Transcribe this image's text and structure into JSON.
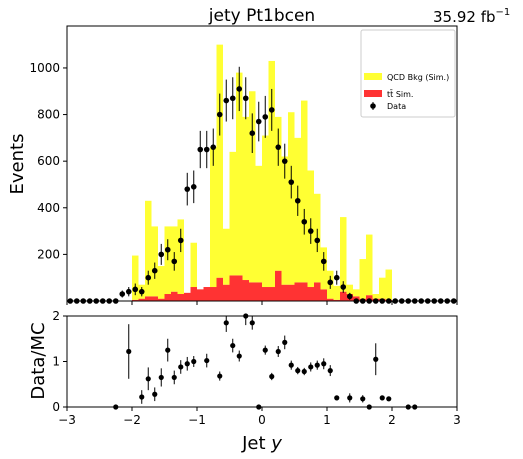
{
  "chart_data": [
    {
      "type": "bar",
      "title": "jety  Pt1bcen",
      "luminosity": "35.92 fb",
      "luminosity_exp": "−1",
      "ylabel": "Events",
      "ylim": [
        0,
        1180
      ],
      "xlim": [
        -3,
        3
      ],
      "xticks": [
        -3,
        -2,
        -1,
        0,
        1,
        2,
        3
      ],
      "yticks": [
        200,
        400,
        600,
        800,
        1000
      ],
      "ytick_labels": [
        "200",
        "400",
        "600",
        "800",
        "1000"
      ],
      "bin_width": 0.1,
      "bin_low_edges": [
        -3.0,
        -2.9,
        -2.8,
        -2.7,
        -2.6,
        -2.5,
        -2.4,
        -2.3,
        -2.2,
        -2.1,
        -2.0,
        -1.9,
        -1.8,
        -1.7,
        -1.6,
        -1.5,
        -1.4,
        -1.3,
        -1.2,
        -1.1,
        -1.0,
        -0.9,
        -0.8,
        -0.7,
        -0.6,
        -0.5,
        -0.4,
        -0.3,
        -0.2,
        -0.1,
        0.0,
        0.1,
        0.2,
        0.3,
        0.4,
        0.5,
        0.6,
        0.7,
        0.8,
        0.9,
        1.0,
        1.1,
        1.2,
        1.3,
        1.4,
        1.5,
        1.6,
        1.7,
        1.8,
        1.9,
        2.0,
        2.1,
        2.2,
        2.3,
        2.4,
        2.5,
        2.6,
        2.7,
        2.8,
        2.9
      ],
      "legend": {
        "placement": "top-right",
        "entries": [
          {
            "label": "QCD Bkg (Sim.)",
            "color": "#ffff33",
            "kind": "box"
          },
          {
            "label": "tt̄ Sim.",
            "color": "#ff3333",
            "kind": "box"
          },
          {
            "label": "Data",
            "color": "#000000",
            "kind": "marker"
          }
        ]
      },
      "series": [
        {
          "name": "QCD Bkg (Sim.)",
          "color": "#ffff33",
          "stacked_on": "tt̄ Sim.",
          "values": [
            0,
            0,
            0,
            0,
            0,
            0,
            0,
            0,
            0,
            0,
            190,
            60,
            410,
            300,
            140,
            290,
            280,
            320,
            0,
            190,
            0,
            0,
            600,
            1000,
            240,
            530,
            870,
            700,
            820,
            500,
            650,
            970,
            660,
            550,
            740,
            620,
            780,
            500,
            380,
            180,
            120,
            60,
            320,
            40,
            30,
            170,
            260,
            20,
            90,
            130,
            0,
            0,
            0,
            0,
            0,
            0,
            0,
            0,
            0,
            0
          ]
        },
        {
          "name": "tt̄ Sim.",
          "color": "#ff3333",
          "values": [
            0,
            0,
            0,
            0,
            0,
            0,
            0,
            0,
            0,
            0,
            5,
            10,
            20,
            20,
            10,
            30,
            40,
            30,
            35,
            60,
            50,
            60,
            60,
            100,
            70,
            110,
            110,
            90,
            80,
            80,
            60,
            60,
            130,
            70,
            70,
            80,
            80,
            60,
            80,
            50,
            10,
            5,
            40,
            30,
            20,
            10,
            25,
            10,
            10,
            5,
            0,
            0,
            0,
            0,
            0,
            0,
            0,
            0,
            0,
            0
          ]
        },
        {
          "name": "Data",
          "color": "#000000",
          "kind": "points",
          "x": [
            -2.95,
            -2.85,
            -2.75,
            -2.65,
            -2.55,
            -2.45,
            -2.35,
            -2.25,
            -2.15,
            -2.05,
            -1.95,
            -1.85,
            -1.75,
            -1.65,
            -1.55,
            -1.45,
            -1.35,
            -1.25,
            -1.15,
            -1.05,
            -0.95,
            -0.85,
            -0.75,
            -0.65,
            -0.55,
            -0.45,
            -0.35,
            -0.25,
            -0.15,
            -0.05,
            0.05,
            0.15,
            0.25,
            0.35,
            0.45,
            0.55,
            0.65,
            0.75,
            0.85,
            0.95,
            1.05,
            1.15,
            1.25,
            1.35,
            1.45,
            1.55,
            1.65,
            1.75,
            1.85,
            1.95,
            2.05,
            2.15,
            2.25,
            2.35,
            2.45,
            2.55,
            2.65,
            2.75,
            2.85,
            2.95
          ],
          "values": [
            0,
            0,
            0,
            0,
            0,
            0,
            0,
            0,
            30,
            40,
            50,
            40,
            100,
            130,
            200,
            220,
            170,
            260,
            480,
            490,
            650,
            650,
            660,
            800,
            860,
            870,
            910,
            870,
            720,
            770,
            790,
            820,
            660,
            600,
            510,
            430,
            340,
            300,
            260,
            170,
            80,
            100,
            60,
            20,
            0,
            0,
            0,
            0,
            0,
            0,
            0,
            0,
            0,
            0,
            0,
            0,
            0,
            0,
            0,
            0
          ],
          "errors": [
            0,
            0,
            0,
            0,
            0,
            0,
            0,
            0,
            15,
            20,
            25,
            20,
            30,
            35,
            45,
            45,
            40,
            50,
            70,
            70,
            80,
            80,
            80,
            90,
            90,
            90,
            95,
            90,
            85,
            85,
            90,
            90,
            80,
            75,
            70,
            65,
            55,
            55,
            50,
            40,
            28,
            30,
            25,
            15,
            0,
            0,
            0,
            0,
            0,
            0,
            0,
            0,
            0,
            0,
            0,
            0,
            0,
            0,
            0,
            0
          ]
        }
      ]
    },
    {
      "type": "scatter",
      "xlabel": "Jet y",
      "ylabel": "Data/MC",
      "xlim": [
        -3,
        3
      ],
      "ylim": [
        0,
        2
      ],
      "xticks": [
        -3,
        -2,
        -1,
        0,
        1,
        2,
        3
      ],
      "xtick_labels": [
        "−3",
        "−2",
        "−1",
        "0",
        "1",
        "2",
        "3"
      ],
      "yticks": [
        0,
        1,
        2
      ],
      "ytick_labels": [
        "0",
        "1",
        "2"
      ],
      "series": [
        {
          "name": "Data/MC",
          "color": "#000000",
          "x": [
            -2.25,
            -2.05,
            -1.85,
            -1.75,
            -1.65,
            -1.55,
            -1.45,
            -1.35,
            -1.25,
            -1.15,
            -1.05,
            -0.85,
            -0.65,
            -0.55,
            -0.45,
            -0.35,
            -0.25,
            -0.15,
            -0.05,
            0.05,
            0.15,
            0.25,
            0.35,
            0.45,
            0.55,
            0.65,
            0.75,
            0.85,
            0.95,
            1.05,
            1.15,
            1.35,
            1.55,
            1.65,
            1.75,
            1.85,
            1.95,
            2.25,
            2.35
          ],
          "values": [
            0.0,
            1.22,
            0.22,
            0.62,
            0.28,
            0.65,
            1.25,
            0.65,
            0.88,
            0.95,
            1.0,
            1.02,
            0.68,
            1.85,
            1.35,
            1.12,
            2.0,
            1.85,
            0.0,
            1.25,
            0.67,
            1.22,
            1.42,
            0.92,
            0.8,
            0.78,
            0.88,
            0.92,
            0.95,
            0.8,
            0.2,
            0.2,
            0.18,
            0.0,
            1.05,
            0.2,
            0.18,
            0.0,
            0.0
          ],
          "errors": [
            0,
            0.6,
            0.15,
            0.25,
            0.15,
            0.2,
            0.25,
            0.15,
            0.15,
            0.15,
            0.12,
            0.15,
            0.1,
            0.2,
            0.15,
            0.12,
            0.2,
            0.15,
            0,
            0.1,
            0.08,
            0.12,
            0.15,
            0.1,
            0.08,
            0.08,
            0.1,
            0.1,
            0.12,
            0.12,
            0.05,
            0.1,
            0.08,
            0,
            0.35,
            0.05,
            0.05,
            0,
            0
          ]
        }
      ]
    }
  ]
}
